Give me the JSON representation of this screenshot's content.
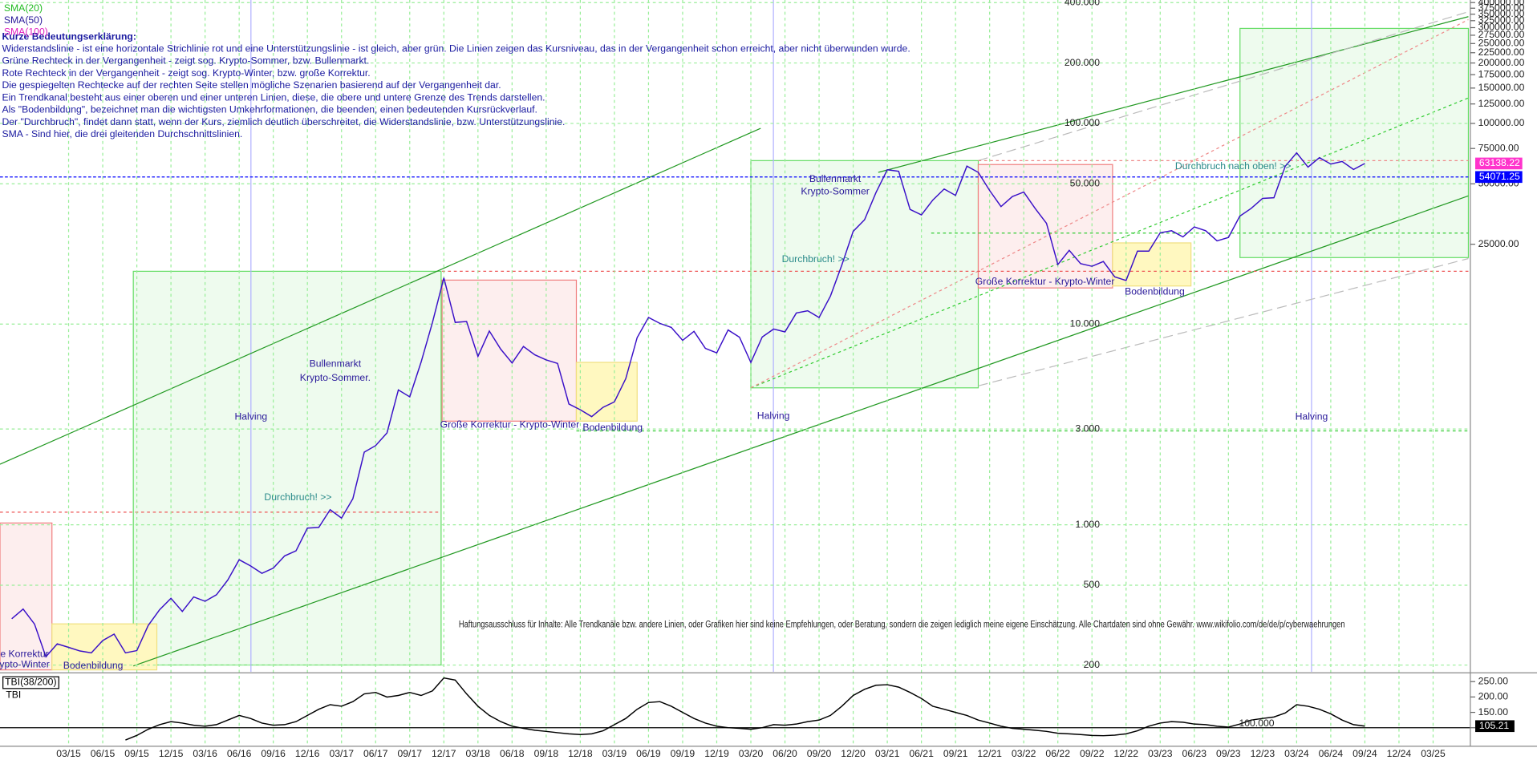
{
  "explanation": {
    "title": "Kurze Bedeutungserklärung:",
    "lines": [
      "Widerstandslinie - ist eine horizontale Strichlinie rot und eine Unterstützungslinie - ist gleich, aber grün. Die Linien zeigen das Kursniveau, das in der Vergangenheit schon erreicht, aber nicht überwunden wurde.",
      "Grüne Rechteck in der Vergangenheit - zeigt sog. Krypto-Sommer, bzw. Bullenmarkt.",
      "Rote Rechteck in der Vergangenheit - zeigt sog. Krypto-Winter, bzw. große Korrektur.",
      "Die gespiegelten Rechtecke auf der rechten Seite stellen mögliche Szenarien basierend auf der Vergangenheit dar.",
      "Ein Trendkanal besteht aus einer oberen und einer unteren Linien, diese, die obere und untere Grenze des Trends darstellen.",
      "Als \"Bodenbildung\", bezeichnet man die wichtigsten Umkehrformationen, die beenden, einen bedeutenden Kursrückverlauf.",
      "Der \"Durchbruch\", findet dann statt, wenn der Kurs, ziemlich deutlich überschreitet, die Widerstandslinie, bzw. Unterstützungslinie.",
      "SMA - Sind hier, die drei gleitenden Durchschnittslinien."
    ]
  },
  "chart_data": {
    "type": "line",
    "log_scale": true,
    "grid": true,
    "indicators": [
      {
        "name": "SMA(20)",
        "color": "#22bb22"
      },
      {
        "name": "SMA(50)",
        "color": "#2a1a9a"
      },
      {
        "name": "SMA(100)",
        "color": "#e020c0"
      }
    ],
    "x": [
      "10/14",
      "11/14",
      "12/14",
      "01/15",
      "02/15",
      "03/15",
      "04/15",
      "05/15",
      "06/15",
      "07/15",
      "08/15",
      "09/15",
      "10/15",
      "11/15",
      "12/15",
      "01/16",
      "02/16",
      "03/16",
      "04/16",
      "05/16",
      "06/16",
      "07/16",
      "08/16",
      "09/16",
      "10/16",
      "11/16",
      "12/16",
      "01/17",
      "02/17",
      "03/17",
      "04/17",
      "05/17",
      "06/17",
      "07/17",
      "08/17",
      "09/17",
      "10/17",
      "11/17",
      "12/17",
      "01/18",
      "02/18",
      "03/18",
      "04/18",
      "05/18",
      "06/18",
      "07/18",
      "08/18",
      "09/18",
      "10/18",
      "11/18",
      "12/18",
      "01/19",
      "02/19",
      "03/19",
      "04/19",
      "05/19",
      "06/19",
      "07/19",
      "08/19",
      "09/19",
      "10/19",
      "11/19",
      "12/19",
      "01/20",
      "02/20",
      "03/20",
      "04/20",
      "05/20",
      "06/20",
      "07/20",
      "08/20",
      "09/20",
      "10/20",
      "11/20",
      "12/20",
      "01/21",
      "02/21",
      "03/21",
      "04/21",
      "05/21",
      "06/21",
      "07/21",
      "08/21",
      "09/21",
      "10/21",
      "11/21",
      "12/21",
      "01/22",
      "02/22",
      "03/22",
      "04/22",
      "05/22",
      "06/22",
      "07/22",
      "08/22",
      "09/22",
      "10/22",
      "11/22",
      "12/22",
      "01/23",
      "02/23",
      "03/23",
      "04/23",
      "05/23",
      "06/23",
      "07/23",
      "08/23",
      "09/23",
      "10/23",
      "11/23",
      "12/23",
      "01/24",
      "02/24",
      "03/24",
      "04/24",
      "05/24",
      "06/24",
      "07/24",
      "08/24",
      "09/24"
    ],
    "series": [
      {
        "color": "#3a10c8",
        "values": [
          340,
          380,
          320,
          220,
          255,
          245,
          235,
          230,
          265,
          285,
          230,
          236,
          315,
          377,
          430,
          370,
          437,
          416,
          448,
          531,
          670,
          624,
          573,
          608,
          700,
          742,
          963,
          970,
          1190,
          1080,
          1350,
          2300,
          2480,
          2870,
          4700,
          4340,
          6470,
          10200,
          17000,
          10200,
          10300,
          6900,
          9240,
          7500,
          6400,
          7730,
          7030,
          6630,
          6370,
          4000,
          3740,
          3460,
          3850,
          4100,
          5350,
          8570,
          10800,
          10080,
          9630,
          8300,
          9200,
          7570,
          7190,
          9350,
          8600,
          6440,
          8620,
          9450,
          9140,
          11350,
          11650,
          10780,
          13800,
          19700,
          29000,
          33100,
          45200,
          58800,
          57700,
          37300,
          35000,
          41500,
          47100,
          43800,
          61300,
          57000,
          46300,
          38500,
          43200,
          45500,
          37700,
          31800,
          19800,
          23300,
          20000,
          19400,
          20500,
          17200,
          16500,
          23100,
          23100,
          28500,
          29200,
          27200,
          30500,
          29200,
          26000,
          27000,
          34500,
          37700,
          42300,
          42600,
          61200,
          71300,
          60600,
          67500,
          62700,
          64600,
          59000,
          63138.22
        ]
      }
    ],
    "last_color": "#ff33cc",
    "support_line": {
      "value": 54071.25,
      "color": "#0000ff"
    },
    "ylim": [
      185,
      412000
    ],
    "yticks": [
      {
        "value": 400000,
        "label": "400.000"
      },
      {
        "value": 200000,
        "label": "200.000"
      },
      {
        "value": 100000,
        "label": "100.000"
      },
      {
        "value": 50000,
        "label": "50.000"
      },
      {
        "value": 10000,
        "label": "10.000"
      },
      {
        "value": 3000,
        "label": "3.000"
      },
      {
        "value": 1000,
        "label": "1.000"
      },
      500,
      200
    ],
    "right_yticks": [
      {
        "value": 25000,
        "label": "25000.00"
      },
      {
        "value": 50000,
        "label": "50000.00"
      },
      {
        "value": 75000,
        "label": "75000.00"
      },
      {
        "value": 100000,
        "label": "100000.00"
      },
      {
        "value": 125000,
        "label": "125000.00"
      },
      {
        "value": 150000,
        "label": "150000.00"
      },
      {
        "value": 175000,
        "label": "175000.00"
      },
      {
        "value": 200000,
        "label": "200000.00"
      },
      {
        "value": 225000,
        "label": "225000.00"
      },
      {
        "value": 250000,
        "label": "250000.00"
      },
      {
        "value": 275000,
        "label": "275000.00"
      },
      {
        "value": 300000,
        "label": "300000.00"
      },
      {
        "value": 325000,
        "label": "325000.00"
      },
      {
        "value": 350000,
        "label": "350000.00"
      },
      {
        "value": 375000,
        "label": "375000.00"
      },
      {
        "value": 400000,
        "label": "400000.00"
      }
    ],
    "xticks": [
      "03/15",
      "06/15",
      "09/15",
      "12/15",
      "03/16",
      "06/16",
      "09/16",
      "12/16",
      "03/17",
      "06/17",
      "09/17",
      "12/17",
      "03/18",
      "06/18",
      "09/18",
      "12/18",
      "03/19",
      "06/19",
      "09/19",
      "12/19",
      "03/20",
      "06/20",
      "09/20",
      "12/20",
      "03/21",
      "06/21",
      "09/21",
      "12/21",
      "03/22",
      "06/22",
      "09/22",
      "12/22",
      "03/23",
      "06/23",
      "09/23",
      "12/23",
      "03/24",
      "06/24",
      "09/24",
      "12/24",
      "03/25"
    ],
    "annotations": [
      "Bullenmarkt",
      "Krypto-Sommer.",
      "Halving",
      "Halving",
      "Halving",
      "Durchbruch! >>",
      "Große Korrektur - Krypto-Winter",
      "Bodenbildung",
      "Durchbruch! >>",
      "Bullenmarkt",
      "Krypto-Sommer",
      "Große Korrektur - Krypto-Winter",
      "Bodenbildung",
      "Durchbruch nach oben! >>",
      "e Korrektur",
      "ypto-Winter",
      "Bodenbildung"
    ],
    "disclaimer": "Haftungsausschluss für Inhalte: Alle Trendkanäle bzw. andere Linien, oder Grafiken hier sind keine Empfehlungen, oder Beratung, sondern die zeigen lediglich meine eigene Einschätzung. Alle Chartdaten sind ohne Gewähr.  www.wikifolio.com/de/de/p/cyberwaehrungen",
    "tbi": {
      "title": "TBI(38/200)",
      "name": "TBI",
      "color": "#000000",
      "x": [
        "08/15",
        "09/15",
        "10/15",
        "11/15",
        "12/15",
        "01/16",
        "02/16",
        "03/16",
        "04/16",
        "05/16",
        "06/16",
        "07/16",
        "08/16",
        "09/16",
        "10/16",
        "11/16",
        "12/16",
        "01/17",
        "02/17",
        "03/17",
        "04/17",
        "05/17",
        "06/17",
        "07/17",
        "08/17",
        "09/17",
        "10/17",
        "11/17",
        "12/17",
        "01/18",
        "02/18",
        "03/18",
        "04/18",
        "05/18",
        "06/18",
        "07/18",
        "08/18",
        "09/18",
        "10/18",
        "11/18",
        "12/18",
        "01/19",
        "02/19",
        "03/19",
        "04/19",
        "05/19",
        "06/19",
        "07/19",
        "08/19",
        "09/19",
        "10/19",
        "11/19",
        "12/19",
        "01/20",
        "02/20",
        "03/20",
        "04/20",
        "05/20",
        "06/20",
        "07/20",
        "08/20",
        "09/20",
        "10/20",
        "11/20",
        "12/20",
        "01/21",
        "02/21",
        "03/21",
        "04/21",
        "05/21",
        "06/21",
        "07/21",
        "08/21",
        "09/21",
        "10/21",
        "11/21",
        "12/21",
        "01/22",
        "02/22",
        "03/22",
        "04/22",
        "05/22",
        "06/22",
        "07/22",
        "08/22",
        "09/22",
        "10/22",
        "11/22",
        "12/22",
        "01/23",
        "02/23",
        "03/23",
        "04/23",
        "05/23",
        "06/23",
        "07/23",
        "08/23",
        "09/23",
        "10/23",
        "11/23",
        "12/23",
        "01/24",
        "02/24",
        "03/24",
        "04/24",
        "05/24",
        "06/24",
        "07/24",
        "08/24",
        "09/24"
      ],
      "values": [
        60,
        75,
        95,
        110,
        120,
        115,
        108,
        105,
        110,
        125,
        140,
        130,
        115,
        108,
        110,
        120,
        140,
        160,
        175,
        170,
        185,
        210,
        215,
        200,
        205,
        215,
        205,
        220,
        262,
        255,
        210,
        170,
        140,
        120,
        105,
        98,
        92,
        88,
        84,
        80,
        78,
        80,
        90,
        110,
        130,
        160,
        182,
        185,
        170,
        150,
        130,
        115,
        105,
        100,
        98,
        95,
        100,
        110,
        108,
        112,
        120,
        125,
        140,
        170,
        205,
        225,
        238,
        240,
        232,
        215,
        195,
        170,
        160,
        150,
        140,
        125,
        115,
        105,
        98,
        95,
        92,
        88,
        82,
        80,
        78,
        75,
        74,
        76,
        80,
        90,
        105,
        115,
        120,
        118,
        112,
        110,
        105,
        102,
        112,
        125,
        130,
        135,
        148,
        175,
        170,
        160,
        145,
        125,
        110,
        105.21
      ],
      "ylim": [
        46,
        269
      ],
      "yticks": [
        {
          "value": 250,
          "label": "250.00"
        },
        {
          "value": 200,
          "label": "200.00"
        },
        {
          "value": 150,
          "label": "150.00"
        },
        {
          "value": 100,
          "label": "100.00"
        }
      ],
      "level": {
        "value": 100,
        "label": "100.000"
      }
    }
  }
}
